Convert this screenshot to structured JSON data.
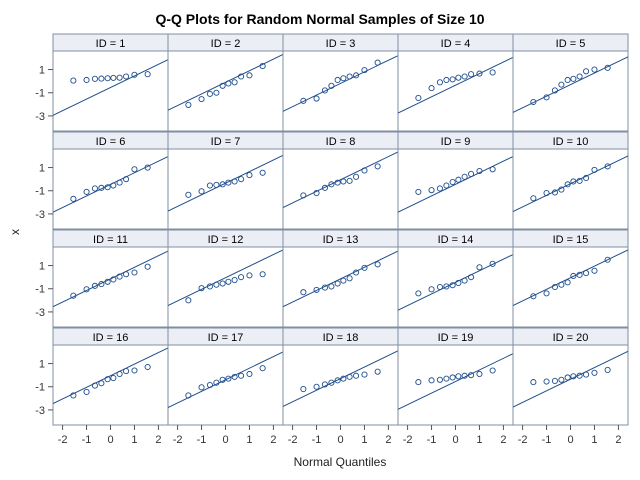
{
  "chart_data": {
    "type": "scatter",
    "title": "Q-Q Plots  for Random Normal Samples of Size 10",
    "xlabel": "Normal Quantiles",
    "ylabel": "x",
    "x_ticks": [
      -2,
      -1,
      0,
      1,
      2
    ],
    "y_ticks": [
      1,
      -1,
      -3
    ],
    "xlim": [
      -2.4,
      2.4
    ],
    "ylim": [
      -4.3,
      2.6
    ],
    "grid": false,
    "colors": {
      "marker": "#1f4e8c",
      "reference_line": "#1f4e8c",
      "strip": "#eceef6",
      "frame": "#7f8fa3"
    },
    "quantiles": [
      -1.55,
      -1.0,
      -0.65,
      -0.38,
      -0.12,
      0.12,
      0.38,
      0.65,
      1.0,
      1.55
    ],
    "panels": [
      {
        "label": "ID = 1",
        "line": {
          "intercept": -0.55,
          "slope": 1.0
        },
        "y": [
          0.05,
          0.1,
          0.2,
          0.22,
          0.25,
          0.28,
          0.3,
          0.4,
          0.55,
          0.6
        ]
      },
      {
        "label": "ID = 2",
        "line": {
          "intercept": -0.1,
          "slope": 1.0
        },
        "y": [
          -2.05,
          -1.55,
          -1.1,
          -1.0,
          -0.4,
          -0.2,
          -0.1,
          0.4,
          0.5,
          1.3
        ]
      },
      {
        "label": "ID = 3",
        "line": {
          "intercept": -0.2,
          "slope": 1.0
        },
        "y": [
          -1.7,
          -1.5,
          -0.8,
          -0.4,
          0.1,
          0.25,
          0.4,
          0.5,
          0.95,
          1.6
        ]
      },
      {
        "label": "ID = 4",
        "line": {
          "intercept": -0.35,
          "slope": 1.0
        },
        "y": [
          -1.45,
          -0.6,
          -0.1,
          0.1,
          0.15,
          0.3,
          0.4,
          0.6,
          0.65,
          0.75
        ]
      },
      {
        "label": "ID = 5",
        "line": {
          "intercept": -0.3,
          "slope": 1.0
        },
        "y": [
          -1.8,
          -1.4,
          -0.8,
          -0.3,
          0.1,
          0.2,
          0.4,
          0.85,
          1.0,
          1.15
        ]
      },
      {
        "label": "ID = 6",
        "line": {
          "intercept": -0.45,
          "slope": 1.0
        },
        "y": [
          -1.7,
          -1.1,
          -0.8,
          -0.75,
          -0.7,
          -0.55,
          -0.3,
          0.0,
          0.85,
          1.0
        ]
      },
      {
        "label": "ID = 7",
        "line": {
          "intercept": -0.35,
          "slope": 1.0
        },
        "y": [
          -1.35,
          -1.05,
          -0.55,
          -0.5,
          -0.45,
          -0.3,
          -0.2,
          0.0,
          0.35,
          0.55
        ]
      },
      {
        "label": "ID = 8",
        "line": {
          "intercept": -0.05,
          "slope": 1.0
        },
        "y": [
          -1.4,
          -1.2,
          -0.75,
          -0.45,
          -0.3,
          -0.2,
          -0.15,
          0.2,
          0.75,
          1.1
        ]
      },
      {
        "label": "ID = 9",
        "line": {
          "intercept": -0.45,
          "slope": 1.0
        },
        "y": [
          -1.1,
          -0.95,
          -0.8,
          -0.55,
          -0.25,
          -0.05,
          0.2,
          0.45,
          0.7,
          0.85
        ]
      },
      {
        "label": "ID = 10",
        "line": {
          "intercept": -0.4,
          "slope": 1.0
        },
        "y": [
          -1.65,
          -1.2,
          -1.15,
          -0.9,
          -0.45,
          -0.2,
          -0.15,
          0.1,
          0.8,
          1.1
        ]
      },
      {
        "label": "ID = 11",
        "line": {
          "intercept": -0.15,
          "slope": 1.0
        },
        "y": [
          -1.6,
          -1.05,
          -0.75,
          -0.6,
          -0.4,
          -0.2,
          0.05,
          0.25,
          0.4,
          0.9
        ]
      },
      {
        "label": "ID = 12",
        "line": {
          "intercept": -0.05,
          "slope": 1.0
        },
        "y": [
          -2.0,
          -0.95,
          -0.8,
          -0.65,
          -0.55,
          -0.4,
          -0.25,
          0.0,
          0.15,
          0.25
        ]
      },
      {
        "label": "ID = 13",
        "line": {
          "intercept": -0.15,
          "slope": 1.0
        },
        "y": [
          -1.3,
          -1.1,
          -0.9,
          -0.8,
          -0.55,
          -0.3,
          -0.1,
          0.4,
          0.8,
          1.1
        ]
      },
      {
        "label": "ID = 14",
        "line": {
          "intercept": -0.45,
          "slope": 1.0
        },
        "y": [
          -1.4,
          -1.05,
          -0.85,
          -0.8,
          -0.7,
          -0.5,
          -0.3,
          0.0,
          0.85,
          1.15
        ]
      },
      {
        "label": "ID = 15",
        "line": {
          "intercept": -0.05,
          "slope": 1.0
        },
        "y": [
          -1.65,
          -1.4,
          -0.85,
          -0.65,
          -0.45,
          0.1,
          0.2,
          0.35,
          0.55,
          1.5
        ]
      },
      {
        "label": "ID = 16",
        "line": {
          "intercept": -0.05,
          "slope": 1.0
        },
        "y": [
          -1.75,
          -1.45,
          -0.9,
          -0.7,
          -0.35,
          -0.25,
          0.1,
          0.35,
          0.4,
          0.7
        ]
      },
      {
        "label": "ID = 17",
        "line": {
          "intercept": -0.4,
          "slope": 1.0
        },
        "y": [
          -1.75,
          -1.05,
          -0.85,
          -0.65,
          -0.4,
          -0.3,
          -0.15,
          -0.05,
          0.1,
          0.6
        ]
      },
      {
        "label": "ID = 18",
        "line": {
          "intercept": -0.3,
          "slope": 1.0
        },
        "y": [
          -1.2,
          -1.0,
          -0.8,
          -0.65,
          -0.45,
          -0.3,
          -0.15,
          -0.05,
          0.05,
          0.3
        ]
      },
      {
        "label": "ID = 19",
        "line": {
          "intercept": -0.55,
          "slope": 1.0
        },
        "y": [
          -0.6,
          -0.45,
          -0.4,
          -0.3,
          -0.2,
          -0.1,
          -0.05,
          0.0,
          0.1,
          0.4
        ]
      },
      {
        "label": "ID = 20",
        "line": {
          "intercept": -0.35,
          "slope": 1.0
        },
        "y": [
          -0.6,
          -0.55,
          -0.5,
          -0.4,
          -0.2,
          -0.1,
          -0.05,
          0.05,
          0.2,
          0.45
        ]
      }
    ]
  }
}
